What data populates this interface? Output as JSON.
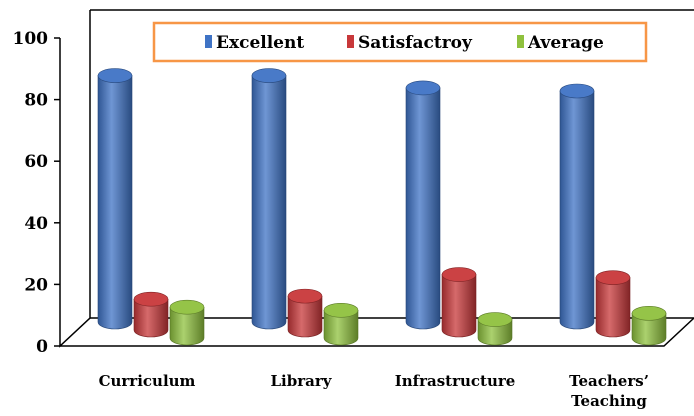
{
  "chart_data": {
    "type": "bar",
    "categories": [
      "Curriculum",
      "Library",
      "Infrastructure",
      "Teachers' Teaching"
    ],
    "category_lines": [
      [
        "Curriculum"
      ],
      [
        "Library"
      ],
      [
        "Infrastructure"
      ],
      [
        "Teachers’",
        "Teaching"
      ]
    ],
    "series": [
      {
        "name": "Excellent",
        "color": "#3f73c5",
        "values": [
          80,
          80,
          76,
          75
        ]
      },
      {
        "name": "Satisfactroy",
        "color": "#c8383a",
        "values": [
          10,
          11,
          18,
          17
        ]
      },
      {
        "name": "Average",
        "color": "#8fc13e",
        "values": [
          10,
          9,
          6,
          8
        ]
      }
    ],
    "ylim": [
      0,
      100
    ],
    "yticks": [
      0,
      20,
      40,
      60,
      80,
      100
    ],
    "title": "",
    "xlabel": "",
    "ylabel": "",
    "legend": {
      "position": "top",
      "border_color": "#f79646"
    },
    "grid": false,
    "style": "3d-cylinder"
  }
}
